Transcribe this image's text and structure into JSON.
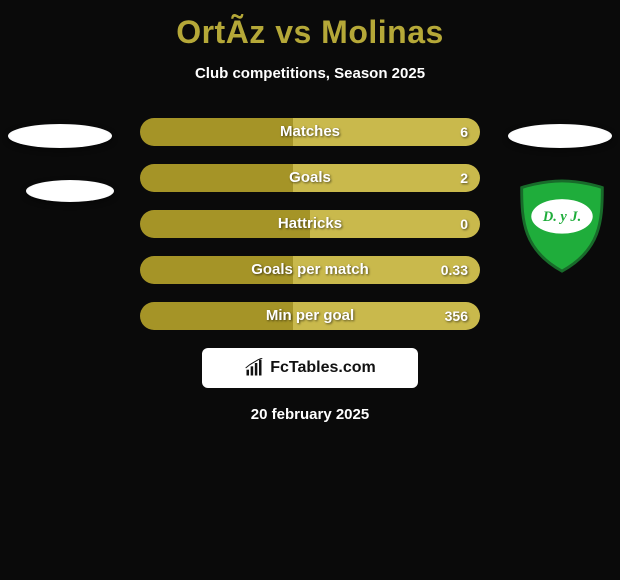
{
  "title": "OrtÃz vs Molinas",
  "subtitle": "Club competitions, Season 2025",
  "footer_date": "20 february 2025",
  "brand": {
    "text": "FcTables.com"
  },
  "colors": {
    "bar_left": "#a59427",
    "bar_right": "#c9b94c",
    "bg": "#0a0a0a"
  },
  "club_badge": {
    "shield_fill": "#1fad3b",
    "shield_stroke": "#186b2a",
    "inner_fill": "#ffffff",
    "text": "D. y J.",
    "text_color": "#1fad3b"
  },
  "stats": [
    {
      "label": "Matches",
      "left_val": "",
      "right_val": "6",
      "left_pct": 45,
      "right_pct": 55
    },
    {
      "label": "Goals",
      "left_val": "",
      "right_val": "2",
      "left_pct": 45,
      "right_pct": 55
    },
    {
      "label": "Hattricks",
      "left_val": "",
      "right_val": "0",
      "left_pct": 50,
      "right_pct": 50
    },
    {
      "label": "Goals per match",
      "left_val": "",
      "right_val": "0.33",
      "left_pct": 45,
      "right_pct": 55
    },
    {
      "label": "Min per goal",
      "left_val": "",
      "right_val": "356",
      "left_pct": 45,
      "right_pct": 55
    }
  ]
}
